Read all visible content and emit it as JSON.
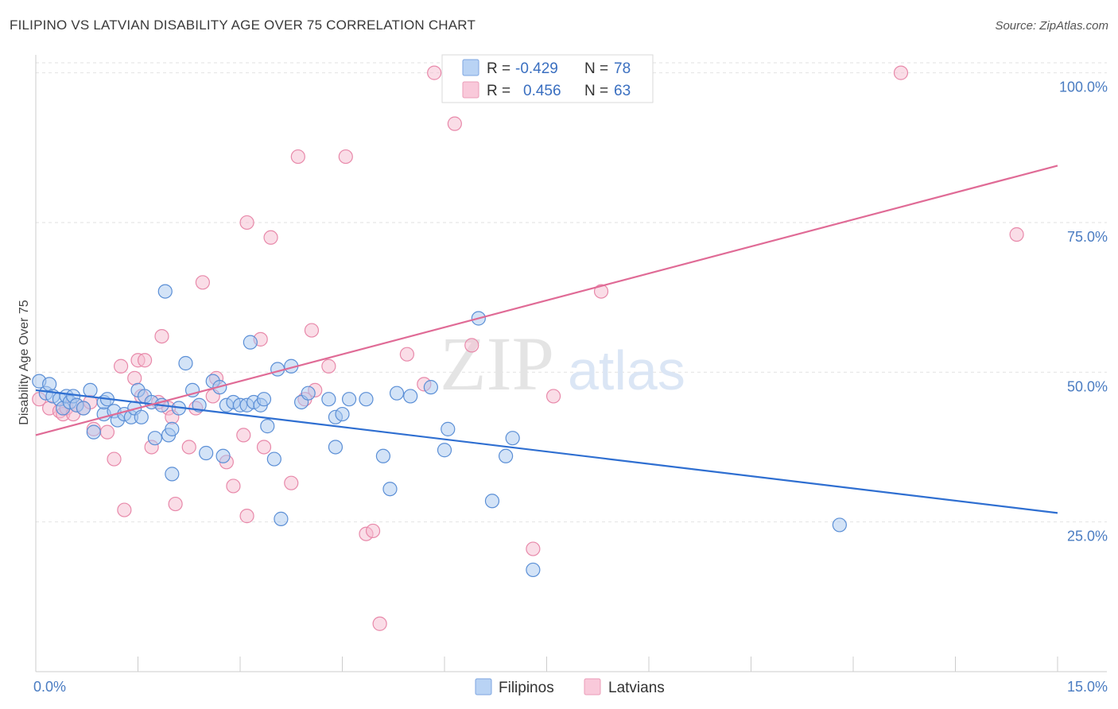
{
  "header": {
    "title": "FILIPINO VS LATVIAN DISABILITY AGE OVER 75 CORRELATION CHART",
    "source": "Source: ZipAtlas.com"
  },
  "watermark": {
    "part1": "ZIP",
    "part2": "atlas"
  },
  "legend": {
    "rows": [
      {
        "r_label": "R = ",
        "r_value": "-0.429",
        "n_label": "N = ",
        "n_value": "78"
      },
      {
        "r_label": "R = ",
        "r_value": "0.456",
        "n_label": "N = ",
        "n_value": "63"
      }
    ]
  },
  "colors": {
    "blue_fill": "#a8c8f0",
    "blue_stroke": "#5b8fd6",
    "blue_line": "#2f6fd1",
    "pink_fill": "#f6bcd0",
    "pink_stroke": "#e889aa",
    "pink_line": "#e06b96",
    "grid": "#e2e2e2",
    "tick_text": "#4a7cc2"
  },
  "chart_data": {
    "type": "scatter",
    "title": "FILIPINO VS LATVIAN DISABILITY AGE OVER 75 CORRELATION CHART",
    "xlabel": "",
    "ylabel": "Disability Age Over 75",
    "xlim": [
      0,
      15
    ],
    "ylim": [
      0,
      103
    ],
    "x_tick_labels": [
      "0.0%",
      "15.0%"
    ],
    "y_ticks": [
      25,
      50,
      75,
      100
    ],
    "y_tick_labels": [
      "25.0%",
      "50.0%",
      "75.0%",
      "100.0%"
    ],
    "grid": true,
    "legend_position": "bottom-center",
    "series": [
      {
        "name": "Filipinos",
        "color": "#5b8fd6",
        "trend": {
          "x": [
            0,
            15
          ],
          "y": [
            47.0,
            26.5
          ]
        },
        "points": [
          [
            0.05,
            48.5
          ],
          [
            0.15,
            46.5
          ],
          [
            0.2,
            48
          ],
          [
            0.25,
            46
          ],
          [
            0.35,
            45.5
          ],
          [
            0.4,
            44
          ],
          [
            0.45,
            46
          ],
          [
            0.5,
            45
          ],
          [
            0.55,
            46
          ],
          [
            0.6,
            44.5
          ],
          [
            0.7,
            44
          ],
          [
            0.8,
            47
          ],
          [
            0.85,
            40
          ],
          [
            1.0,
            43
          ],
          [
            1.0,
            45
          ],
          [
            1.05,
            45.5
          ],
          [
            1.15,
            43.5
          ],
          [
            1.2,
            42
          ],
          [
            1.3,
            43
          ],
          [
            1.4,
            42.5
          ],
          [
            1.45,
            44
          ],
          [
            1.5,
            47
          ],
          [
            1.55,
            42.5
          ],
          [
            1.6,
            46
          ],
          [
            1.7,
            45
          ],
          [
            1.75,
            39
          ],
          [
            1.85,
            44.5
          ],
          [
            1.9,
            63.5
          ],
          [
            1.95,
            39.5
          ],
          [
            2.0,
            40.5
          ],
          [
            2.0,
            33
          ],
          [
            2.1,
            44
          ],
          [
            2.2,
            51.5
          ],
          [
            2.3,
            47
          ],
          [
            2.4,
            44.5
          ],
          [
            2.5,
            36.5
          ],
          [
            2.6,
            48.5
          ],
          [
            2.7,
            47.5
          ],
          [
            2.75,
            36
          ],
          [
            2.8,
            44.5
          ],
          [
            2.9,
            45
          ],
          [
            3.0,
            44.5
          ],
          [
            3.1,
            44.5
          ],
          [
            3.15,
            55
          ],
          [
            3.2,
            45
          ],
          [
            3.3,
            44.5
          ],
          [
            3.35,
            45.5
          ],
          [
            3.4,
            41
          ],
          [
            3.5,
            35.5
          ],
          [
            3.55,
            50.5
          ],
          [
            3.6,
            25.5
          ],
          [
            3.75,
            51
          ],
          [
            3.9,
            45
          ],
          [
            4.0,
            46.5
          ],
          [
            4.3,
            45.5
          ],
          [
            4.4,
            37.5
          ],
          [
            4.4,
            42.5
          ],
          [
            4.5,
            43
          ],
          [
            4.6,
            45.5
          ],
          [
            4.85,
            45.5
          ],
          [
            5.1,
            36
          ],
          [
            5.2,
            30.5
          ],
          [
            5.3,
            46.5
          ],
          [
            5.5,
            46
          ],
          [
            5.8,
            47.5
          ],
          [
            6.0,
            37
          ],
          [
            6.05,
            40.5
          ],
          [
            6.5,
            59
          ],
          [
            6.7,
            28.5
          ],
          [
            6.9,
            36
          ],
          [
            7.0,
            39
          ],
          [
            7.3,
            17
          ],
          [
            11.8,
            24.5
          ]
        ]
      },
      {
        "name": "Latvians",
        "color": "#e889aa",
        "trend": {
          "x": [
            0,
            15
          ],
          "y": [
            39.5,
            84.5
          ]
        },
        "points": [
          [
            0.05,
            45.5
          ],
          [
            0.2,
            44
          ],
          [
            0.35,
            43.5
          ],
          [
            0.4,
            43
          ],
          [
            0.45,
            44
          ],
          [
            0.55,
            43
          ],
          [
            0.6,
            44.5
          ],
          [
            0.7,
            44
          ],
          [
            0.8,
            45
          ],
          [
            0.85,
            40.5
          ],
          [
            1.05,
            40
          ],
          [
            1.15,
            35.5
          ],
          [
            1.25,
            51
          ],
          [
            1.3,
            27
          ],
          [
            1.45,
            49
          ],
          [
            1.5,
            52
          ],
          [
            1.55,
            46
          ],
          [
            1.6,
            52
          ],
          [
            1.7,
            37.5
          ],
          [
            1.8,
            45
          ],
          [
            1.85,
            56
          ],
          [
            1.95,
            44
          ],
          [
            2.0,
            42.5
          ],
          [
            2.05,
            28
          ],
          [
            2.25,
            37.5
          ],
          [
            2.35,
            44
          ],
          [
            2.45,
            65
          ],
          [
            2.6,
            46
          ],
          [
            2.65,
            49
          ],
          [
            2.8,
            35
          ],
          [
            2.9,
            31
          ],
          [
            3.05,
            39.5
          ],
          [
            3.1,
            26
          ],
          [
            3.1,
            75
          ],
          [
            3.3,
            55.5
          ],
          [
            3.35,
            37.5
          ],
          [
            3.45,
            72.5
          ],
          [
            3.75,
            31.5
          ],
          [
            3.85,
            86
          ],
          [
            3.95,
            45.5
          ],
          [
            4.05,
            57
          ],
          [
            4.1,
            47
          ],
          [
            4.3,
            51
          ],
          [
            4.55,
            86
          ],
          [
            4.85,
            23
          ],
          [
            4.95,
            23.5
          ],
          [
            5.05,
            8
          ],
          [
            5.45,
            53
          ],
          [
            5.7,
            48
          ],
          [
            5.85,
            100
          ],
          [
            6.15,
            91.5
          ],
          [
            6.4,
            54.5
          ],
          [
            7.3,
            20.5
          ],
          [
            7.6,
            46
          ],
          [
            8.3,
            63.5
          ],
          [
            8.8,
            100
          ],
          [
            12.7,
            100
          ],
          [
            14.4,
            73
          ]
        ]
      }
    ]
  }
}
